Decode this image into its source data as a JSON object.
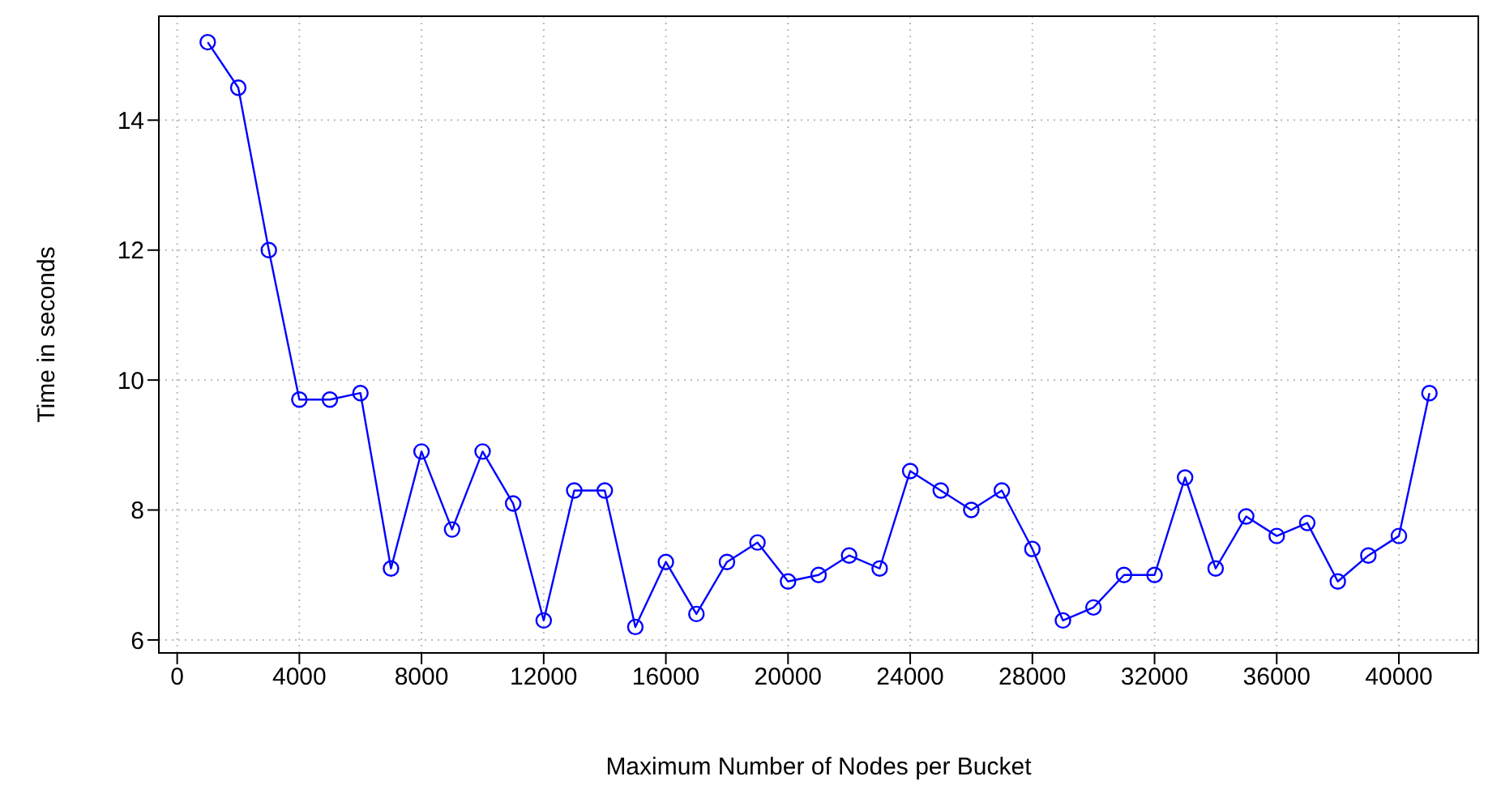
{
  "chart_data": {
    "type": "line",
    "xlabel": "Maximum Number of Nodes per Bucket",
    "ylabel": "Time in seconds",
    "x": [
      1000,
      2000,
      3000,
      4000,
      5000,
      6000,
      7000,
      8000,
      9000,
      10000,
      11000,
      12000,
      13000,
      14000,
      15000,
      16000,
      17000,
      18000,
      19000,
      20000,
      21000,
      22000,
      23000,
      24000,
      25000,
      26000,
      27000,
      28000,
      29000,
      30000,
      31000,
      32000,
      33000,
      34000,
      35000,
      36000,
      37000,
      38000,
      39000,
      40000,
      41000
    ],
    "series": [
      {
        "color": "#0000ff",
        "values": [
          15.2,
          14.5,
          12.0,
          9.7,
          9.7,
          9.8,
          7.1,
          8.9,
          7.7,
          8.9,
          8.1,
          6.3,
          8.3,
          8.3,
          6.2,
          7.2,
          6.4,
          7.2,
          7.5,
          6.9,
          7.0,
          7.3,
          7.1,
          8.6,
          8.3,
          8.0,
          8.3,
          7.4,
          6.3,
          6.5,
          7.0,
          7.0,
          8.5,
          7.1,
          7.9,
          7.6,
          7.8,
          6.9,
          7.3,
          7.6,
          9.8
        ]
      }
    ],
    "xlim": [
      -600,
      42600
    ],
    "xticks": [
      0,
      4000,
      8000,
      12000,
      16000,
      20000,
      24000,
      28000,
      32000,
      36000,
      40000
    ],
    "ylim": [
      5.8,
      15.6
    ],
    "yticks": [
      6,
      8,
      10,
      12,
      14
    ],
    "grid": true,
    "marker": "circle",
    "line_style": "solid",
    "legend": false
  }
}
